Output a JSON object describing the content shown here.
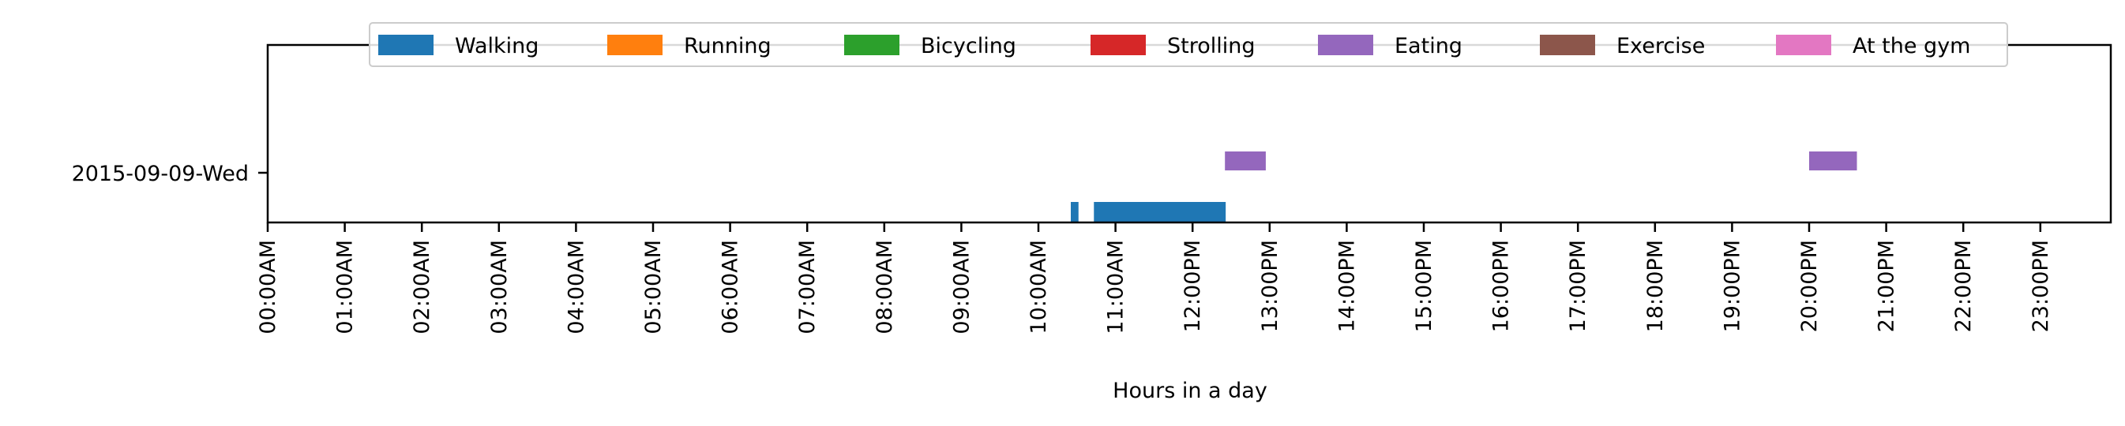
{
  "chart_data": {
    "type": "timeline",
    "xlabel": "Hours in a day",
    "ylabel": "",
    "xlim": [
      0,
      24
    ],
    "x_ticks": [
      0,
      1,
      2,
      3,
      4,
      5,
      6,
      7,
      8,
      9,
      10,
      11,
      12,
      13,
      14,
      15,
      16,
      17,
      18,
      19,
      20,
      21,
      22,
      23
    ],
    "x_tick_labels": [
      "00:00AM",
      "01:00AM",
      "02:00AM",
      "03:00AM",
      "04:00AM",
      "05:00AM",
      "06:00AM",
      "07:00AM",
      "08:00AM",
      "09:00AM",
      "10:00AM",
      "11:00AM",
      "12:00PM",
      "13:00PM",
      "14:00PM",
      "15:00PM",
      "16:00PM",
      "17:00PM",
      "18:00PM",
      "19:00PM",
      "20:00PM",
      "21:00PM",
      "22:00PM",
      "23:00PM"
    ],
    "y_categories": [
      "2015-09-09-Wed"
    ],
    "legend": {
      "placement": "top-center",
      "entries": [
        {
          "label": "Walking",
          "color": "#1f77b4"
        },
        {
          "label": "Running",
          "color": "#ff7f0e"
        },
        {
          "label": "Bicycling",
          "color": "#2ca02c"
        },
        {
          "label": "Strolling",
          "color": "#d62728"
        },
        {
          "label": "Eating",
          "color": "#9467bd"
        },
        {
          "label": "Exercise",
          "color": "#8c564b"
        },
        {
          "label": "At the gym",
          "color": "#e377c2"
        }
      ]
    },
    "series": [
      {
        "name": "Walking",
        "color": "#1f77b4",
        "day": "2015-09-09-Wed",
        "lane": "lower",
        "intervals": [
          [
            10.42,
            10.52
          ],
          [
            10.72,
            12.43
          ]
        ]
      },
      {
        "name": "Eating",
        "color": "#9467bd",
        "day": "2015-09-09-Wed",
        "lane": "upper",
        "intervals": [
          [
            12.42,
            12.95
          ],
          [
            20.0,
            20.62
          ]
        ]
      }
    ]
  }
}
